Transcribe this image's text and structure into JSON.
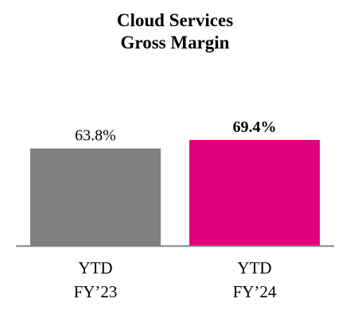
{
  "chart_data": {
    "type": "bar",
    "title": [
      "Cloud Services",
      "Gross Margin"
    ],
    "categories": [
      [
        "YTD",
        "FY’23"
      ],
      [
        "YTD",
        "FY’24"
      ]
    ],
    "values": [
      63.8,
      69.4
    ],
    "data_labels": [
      "63.8%",
      "69.4%"
    ],
    "data_label_bold": [
      false,
      true
    ],
    "colors": [
      "#808080",
      "#e0007a"
    ],
    "baseline_color": "#808080",
    "ylim": [
      0,
      69.4
    ],
    "grid": false,
    "legend": "none"
  }
}
